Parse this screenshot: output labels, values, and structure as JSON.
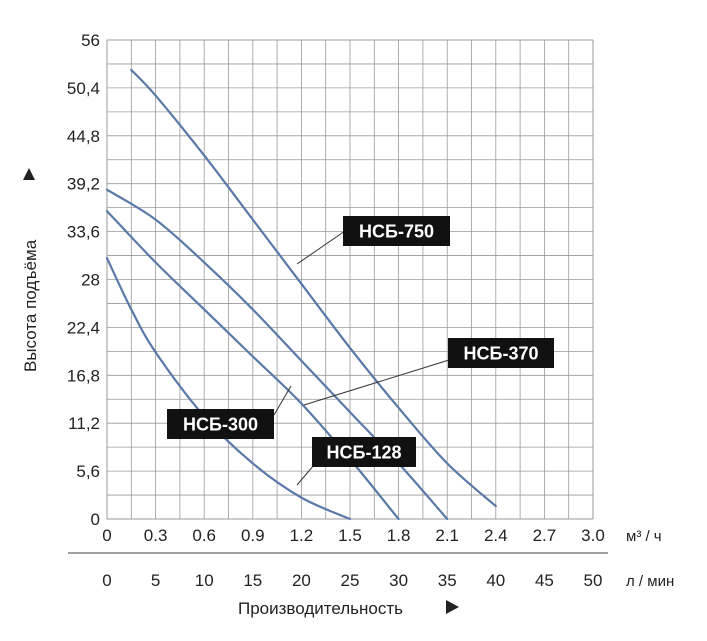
{
  "chart_data": {
    "type": "line",
    "ylabel": "Высота подъёма",
    "xlabel": "Производительность",
    "x_unit_m3h": "м³ / ч",
    "x_unit_lmin": "л / мин",
    "xlim_m3h": [
      0,
      3.0
    ],
    "ylim": [
      0,
      56
    ],
    "x_ticks_m3h": [
      "0",
      "0.3",
      "0.6",
      "0.9",
      "1.2",
      "1.5",
      "1.8",
      "2.1",
      "2.4",
      "2.7",
      "3.0"
    ],
    "x_ticks_lmin": [
      "0",
      "5",
      "10",
      "15",
      "20",
      "25",
      "30",
      "35",
      "40",
      "45",
      "50"
    ],
    "y_ticks": [
      "0",
      "5,6",
      "11,2",
      "16,8",
      "22,4",
      "28",
      "33,6",
      "39,2",
      "44,8",
      "50,4",
      "56"
    ],
    "grid": true,
    "series": [
      {
        "name": "НСБ-750",
        "x": [
          0.15,
          0.3,
          0.6,
          0.9,
          1.2,
          1.5,
          1.8,
          2.1,
          2.4
        ],
        "y": [
          52.5,
          49.5,
          42.5,
          35,
          27.5,
          20,
          13,
          6.5,
          1.5
        ]
      },
      {
        "name": "НСБ-370",
        "x": [
          0,
          0.3,
          0.6,
          0.9,
          1.2,
          1.5,
          1.8,
          2.1
        ],
        "y": [
          38.5,
          35,
          30,
          24.5,
          18.5,
          12.5,
          6.5,
          0
        ]
      },
      {
        "name": "НСБ-300",
        "x": [
          0,
          0.3,
          0.6,
          0.9,
          1.2,
          1.5,
          1.8
        ],
        "y": [
          36,
          30,
          24.5,
          19,
          13.5,
          7,
          0
        ]
      },
      {
        "name": "НСБ-128",
        "x": [
          0,
          0.15,
          0.3,
          0.6,
          0.9,
          1.2,
          1.5
        ],
        "y": [
          30.5,
          24.5,
          19.5,
          12,
          6.5,
          2.5,
          0
        ]
      }
    ],
    "labels": [
      {
        "text": "НСБ-750",
        "series": "НСБ-750"
      },
      {
        "text": "НСБ-370",
        "series": "НСБ-370"
      },
      {
        "text": "НСБ-300",
        "series": "НСБ-300"
      },
      {
        "text": "НСБ-128",
        "series": "НСБ-128"
      }
    ]
  },
  "colors": {
    "line": "#5a79a8",
    "grid": "#999999",
    "label_bg": "#111111",
    "label_text": "#ffffff"
  }
}
